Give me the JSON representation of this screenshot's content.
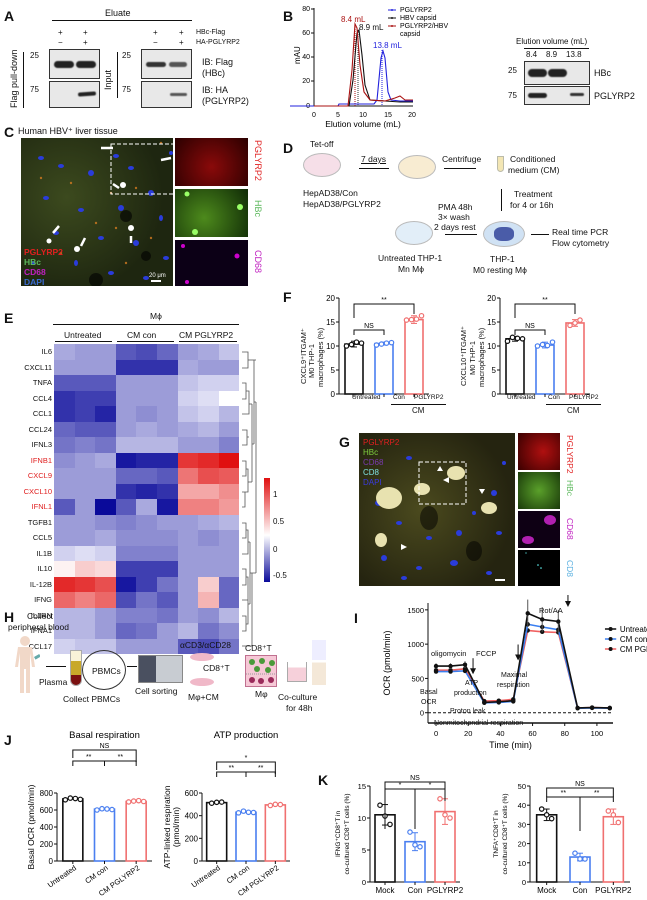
{
  "panelA": {
    "label": "A",
    "eluate": "Eluate",
    "pulldown": "Flag pull-down",
    "input": "Input",
    "row1": "HBc-Flag",
    "row2": "HA-PGLYRP2",
    "signs_eluate_r1": [
      "+",
      "+"
    ],
    "signs_eluate_r2": [
      "−",
      "+"
    ],
    "signs_input_r1": [
      "+",
      "+"
    ],
    "signs_input_r2": [
      "−",
      "+"
    ],
    "mw_top": "25",
    "mw_bottom": "75",
    "ib1a": "IB: Flag",
    "ib1b": "(HBc)",
    "ib2a": "IB: HA",
    "ib2b": "(PGLYRP2)"
  },
  "panelB": {
    "label": "B",
    "blot_title": "Elution volume (mL)",
    "blot_cols": [
      "8.4",
      "8.9",
      "13.8"
    ],
    "blot_rows": [
      "HBc",
      "PGLYRP2"
    ],
    "mw_top": "25",
    "mw_bottom": "75"
  },
  "panelC": {
    "label": "C",
    "title": "Human HBV⁺ liver tissue",
    "legend": [
      "PGLYRP2",
      "HBc",
      "CD68",
      "DAPI"
    ],
    "scale": "20 μm",
    "channels": [
      "PGLYRP2",
      "HBc",
      "CD68"
    ]
  },
  "panelD": {
    "label": "D",
    "tetoff": "Tet-off",
    "days7": "7 days",
    "centrifuge": "Centrifuge",
    "cm1": "Conditioned",
    "cm2": "medium (CM)",
    "hep1": "HepAD38/Con",
    "hep2": "HepAD38/PGLYRP2",
    "treat1": "Treatment",
    "treat2": "for 4 or 16h",
    "pma1": "PMA 48h",
    "pma2": "3× wash",
    "pma3": "2 days rest",
    "untreated1": "Untreated THP-1",
    "untreated2": "Mn Mϕ",
    "thp1": "THP-1",
    "thp2": "M0 resting Mϕ",
    "out1": "Real time PCR",
    "out2": "Flow cytometry"
  },
  "panelE": {
    "label": "E",
    "group_title": "Mϕ",
    "groups": [
      "Untreated",
      "CM con",
      "CM PGLYRP2"
    ],
    "scale_ticks": [
      "1",
      "0.5",
      "0",
      "-0.5"
    ]
  },
  "panelF": {
    "label": "F",
    "ylabel1a": "CXCL9⁺ITGAM⁺",
    "ylabel1b": "M0 THP-1",
    "ylabel1c": "macrophages (%)",
    "ylabel2a": "CXCL10⁺ITGAM⁺",
    "ylabel2b": "M0 THP-1",
    "ylabel2c": "macrophages (%)",
    "xcats": [
      "Untreated",
      "Con",
      "PGLYRP2"
    ],
    "cm": "CM",
    "sig_ns": "NS",
    "sig_star": "**"
  },
  "panelG": {
    "label": "G",
    "legend": [
      "PGLYRP2",
      "HBc",
      "CD68",
      "CD8",
      "DAPI"
    ],
    "channels": [
      "PGLYRP2",
      "HBc",
      "CD68",
      "CD8"
    ]
  },
  "panelH": {
    "label": "H",
    "collect1": "Collect",
    "collect2": "peripheral blood",
    "plasma": "Plasma",
    "pbmcs": "PBMCs",
    "collect_pbmcs": "Collect PBMCs",
    "sorting": "Cell sorting",
    "acd3": "αCD3/αCD28",
    "cd8t": "CD8⁺T",
    "mcm": "Mφ+CM",
    "cd8t2": "CD8⁺T",
    "mphi": "Mφ",
    "coculture1": "Co-culture",
    "coculture2": "for 48h"
  },
  "panelI": {
    "label": "I",
    "annotations": {
      "oligomycin": "oligomycin",
      "fccp": "FCCP",
      "rotaa": "Rot/AA",
      "basal1": "Basal",
      "basal2": "OCR",
      "atp1": "ATP",
      "atp2": "production",
      "max1": "Maximal",
      "max2": "respiration",
      "proton": "Proton leak",
      "nonmito": "Nonmitochondrial respiration"
    }
  },
  "panelJ": {
    "label": "J"
  },
  "panelK": {
    "label": "K"
  },
  "chart_data": [
    {
      "id": "B",
      "type": "line",
      "title": "",
      "xlabel": "Elution volume (mL)",
      "ylabel": "mAU",
      "xlim": [
        0,
        20
      ],
      "ylim": [
        0,
        80
      ],
      "xticks": [
        0,
        5,
        10,
        15,
        20
      ],
      "yticks": [
        0,
        20,
        40,
        60,
        80
      ],
      "series": [
        {
          "name": "PGLYRP2",
          "color": "#2222dd",
          "peak_x": 13.8,
          "peak_y": 41,
          "points": [
            [
              0,
              0
            ],
            [
              5,
              0
            ],
            [
              5.1,
              2
            ],
            [
              12,
              2
            ],
            [
              12.7,
              5
            ],
            [
              13.8,
              41
            ],
            [
              15,
              10
            ],
            [
              16,
              4
            ],
            [
              20,
              3
            ]
          ]
        },
        {
          "name": "HBV capsid",
          "color": "#111111",
          "peak_x": 8.9,
          "peak_y": 66,
          "points": [
            [
              0,
              0
            ],
            [
              7.3,
              0
            ],
            [
              8.0,
              30
            ],
            [
              8.9,
              66
            ],
            [
              9.8,
              25
            ],
            [
              11,
              8
            ],
            [
              14,
              5
            ],
            [
              17,
              4
            ],
            [
              20,
              3
            ]
          ]
        },
        {
          "name": "PGLYRP2/HBV capsid",
          "color": "#aa1111",
          "peak_x": 8.4,
          "peak_y": 69,
          "points": [
            [
              0,
              0
            ],
            [
              7.2,
              0
            ],
            [
              7.8,
              40
            ],
            [
              8.4,
              69
            ],
            [
              9.3,
              20
            ],
            [
              10.5,
              8
            ],
            [
              14,
              5
            ],
            [
              17,
              8
            ],
            [
              18,
              9
            ],
            [
              19,
              5
            ],
            [
              20,
              5
            ]
          ]
        }
      ],
      "annotations": [
        "8.4 mL",
        "8.9 mL",
        "13.8 mL"
      ],
      "legend_position": "top-right"
    },
    {
      "id": "E",
      "type": "heatmap",
      "title": "Mϕ",
      "columns": [
        "Untreated-1",
        "Untreated-2",
        "Untreated-3",
        "CM con-1",
        "CM con-2",
        "CM con-3",
        "CM PGLYRP2-1",
        "CM PGLYRP2-2",
        "CM PGLYRP2-3"
      ],
      "rows": [
        "IL6",
        "CXCL11",
        "TNFA",
        "CCL4",
        "CCL1",
        "CCL24",
        "IFNL3",
        "IFNB1",
        "CXCL9",
        "CXCL10",
        "IFNL1",
        "TGFB1",
        "CCL5",
        "IL1B",
        "IL10",
        "IL-12B",
        "IFNG",
        "IL1RN",
        "IFNA1",
        "CCL17"
      ],
      "highlighted_rows": [
        "IFNB1",
        "CXCL9",
        "CXCL10",
        "IFNL1"
      ],
      "highlight_color": "#e02020",
      "color_scale": {
        "min": -0.5,
        "max": 1.2,
        "low": "#0a0a9a",
        "mid": "#ffffff",
        "high": "#e01010",
        "ticks": [
          1,
          0.5,
          0,
          -0.5
        ]
      },
      "values": [
        [
          0.0,
          -0.05,
          -0.05,
          -0.3,
          -0.35,
          -0.25,
          -0.05,
          0.0,
          0.1
        ],
        [
          -0.05,
          -0.05,
          -0.05,
          -0.45,
          -0.45,
          -0.45,
          0.0,
          -0.05,
          -0.05
        ],
        [
          -0.3,
          -0.3,
          -0.3,
          -0.05,
          -0.05,
          -0.05,
          0.1,
          0.15,
          0.15
        ],
        [
          -0.45,
          -0.4,
          -0.4,
          -0.05,
          -0.05,
          -0.05,
          0.15,
          0.2,
          0.25
        ],
        [
          -0.45,
          -0.4,
          -0.5,
          -0.05,
          -0.1,
          -0.05,
          0.1,
          0.15,
          0.05
        ],
        [
          -0.25,
          -0.3,
          -0.3,
          -0.05,
          0.0,
          -0.05,
          0.0,
          0.05,
          -0.05
        ],
        [
          -0.2,
          -0.15,
          -0.2,
          0.05,
          0.05,
          0.05,
          -0.05,
          -0.05,
          -0.15
        ],
        [
          -0.1,
          -0.05,
          0.0,
          -0.55,
          -0.5,
          -0.5,
          1.05,
          1.1,
          1.2
        ],
        [
          -0.05,
          -0.05,
          -0.05,
          -0.25,
          -0.25,
          -0.3,
          0.8,
          0.95,
          0.9
        ],
        [
          -0.05,
          -0.05,
          -0.05,
          -0.45,
          -0.5,
          -0.45,
          0.6,
          0.6,
          0.7
        ],
        [
          -0.3,
          -0.05,
          -0.6,
          -0.3,
          0.0,
          -0.55,
          0.75,
          0.75,
          0.65
        ],
        [
          -0.05,
          -0.05,
          -0.1,
          -0.15,
          -0.1,
          -0.05,
          -0.05,
          0.0,
          0.05
        ],
        [
          -0.05,
          -0.05,
          0.0,
          -0.1,
          -0.1,
          -0.1,
          -0.05,
          -0.1,
          -0.05
        ],
        [
          0.15,
          0.2,
          0.15,
          -0.15,
          -0.15,
          -0.15,
          -0.05,
          -0.05,
          -0.05
        ],
        [
          0.3,
          0.45,
          0.4,
          -0.4,
          -0.4,
          -0.4,
          -0.05,
          -0.05,
          -0.05
        ],
        [
          1.1,
          1.05,
          0.95,
          -0.55,
          -0.4,
          -0.2,
          -0.05,
          0.45,
          -0.25
        ],
        [
          0.85,
          0.75,
          0.85,
          -0.35,
          -0.2,
          -0.3,
          -0.05,
          0.55,
          -0.25
        ],
        [
          0.05,
          0.05,
          -0.05,
          -0.15,
          -0.15,
          -0.2,
          -0.05,
          -0.1,
          0.05
        ],
        [
          0.05,
          0.05,
          -0.05,
          -0.25,
          -0.2,
          -0.05,
          0.05,
          -0.2,
          -0.1
        ],
        [
          0.15,
          0.1,
          0.1,
          -0.05,
          -0.05,
          -0.05,
          -0.3,
          -0.35,
          -0.2
        ]
      ]
    },
    {
      "id": "F-left",
      "type": "bar",
      "ylabel": "CXCL9⁺ITGAM⁺ M0 THP-1 macrophages (%)",
      "categories": [
        "Untreated",
        "Con",
        "PGLYRP2"
      ],
      "group_label": "CM (Con, PGLYRP2)",
      "values": [
        10.4,
        10.5,
        15.5
      ],
      "errors": [
        0.6,
        0.3,
        0.8
      ],
      "points": [
        [
          10.0,
          10.3,
          10.8,
          10.6
        ],
        [
          10.2,
          10.4,
          10.6,
          10.7
        ],
        [
          15.4,
          15.5,
          15.6,
          16.3
        ]
      ],
      "colors": [
        "#111111",
        "#4a7ff0",
        "#f07070"
      ],
      "ylim": [
        0,
        20
      ],
      "yticks": [
        0,
        5,
        10,
        15,
        20
      ],
      "significance": [
        {
          "pair": [
            "Untreated",
            "Con"
          ],
          "label": "NS"
        },
        {
          "pair": [
            "Untreated",
            "PGLYRP2"
          ],
          "label": "**"
        }
      ]
    },
    {
      "id": "F-right",
      "type": "bar",
      "ylabel": "CXCL10⁺ITGAM⁺ M0 THP-1 macrophages (%)",
      "categories": [
        "Untreated",
        "Con",
        "PGLYRP2"
      ],
      "group_label": "CM (Con, PGLYRP2)",
      "values": [
        11.5,
        10.2,
        14.8
      ],
      "errors": [
        0.5,
        0.6,
        0.7
      ],
      "points": [
        [
          11.0,
          11.8,
          11.6,
          11.5
        ],
        [
          10.0,
          10.3,
          10.1,
          10.8
        ],
        [
          14.3,
          14.8,
          15.4
        ]
      ],
      "colors": [
        "#111111",
        "#4a7ff0",
        "#f07070"
      ],
      "ylim": [
        0,
        20
      ],
      "yticks": [
        0,
        5,
        10,
        15,
        20
      ],
      "significance": [
        {
          "pair": [
            "Untreated",
            "Con"
          ],
          "label": "NS"
        },
        {
          "pair": [
            "Untreated",
            "PGLYRP2"
          ],
          "label": "**"
        }
      ]
    },
    {
      "id": "I",
      "type": "line",
      "xlabel": "Time (min)",
      "ylabel": "OCR (pmol/min)",
      "xlim": [
        -5,
        110
      ],
      "ylim": [
        -150,
        1600
      ],
      "xticks": [
        0,
        20,
        40,
        60,
        80,
        100
      ],
      "yticks": [
        0,
        500,
        1000,
        1500
      ],
      "x": [
        0,
        9,
        18,
        30,
        39,
        48,
        57,
        66,
        76,
        88,
        97,
        108
      ],
      "series": [
        {
          "name": "Untreated",
          "color": "#111111",
          "values": [
            680,
            680,
            700,
            150,
            160,
            175,
            1450,
            1360,
            1330,
            70,
            75,
            70
          ],
          "errors": [
            40,
            40,
            50,
            20,
            20,
            20,
            200,
            180,
            170,
            15,
            15,
            15
          ]
        },
        {
          "name": "CM con",
          "color": "#3a7ff0",
          "values": [
            600,
            600,
            610,
            145,
            150,
            165,
            1290,
            1250,
            1210,
            65,
            70,
            65
          ]
        },
        {
          "name": "CM PGLYRP2",
          "color": "#f06060",
          "values": [
            620,
            620,
            640,
            170,
            175,
            195,
            1200,
            1180,
            1170,
            70,
            75,
            70
          ]
        }
      ],
      "annotations": [
        "oligomycin @ ~23",
        "FCCP @ ~51",
        "Rot/AA @ ~82",
        "Basal OCR",
        "ATP production",
        "Maximal respiration",
        "Proton leak",
        "Nonmitochondrial respiration"
      ],
      "legend_position": "top-right"
    },
    {
      "id": "J-left",
      "type": "bar",
      "title": "Basal respiration",
      "ylabel": "Basal OCR (pmol/min)",
      "categories": [
        "Untreated",
        "CM con",
        "CM PGLYRP2"
      ],
      "values": [
        730,
        610,
        700
      ],
      "points": [
        [
          720,
          740,
          735,
          725
        ],
        [
          600,
          615,
          612,
          605
        ],
        [
          695,
          705,
          710,
          700
        ]
      ],
      "colors": [
        "#111111",
        "#4a7ff0",
        "#f07070"
      ],
      "ylim": [
        0,
        800
      ],
      "yticks": [
        0,
        200,
        400,
        600,
        800
      ],
      "significance": [
        {
          "pair": [
            "Untreated",
            "CM con"
          ],
          "label": "**"
        },
        {
          "pair": [
            "CM con",
            "CM PGLYRP2"
          ],
          "label": "**"
        },
        {
          "pair": [
            "Untreated",
            "CM PGLYRP2"
          ],
          "label": "NS"
        }
      ]
    },
    {
      "id": "J-right",
      "type": "bar",
      "title": "ATP production",
      "ylabel": "ATP-linked respiration (pmol/min)",
      "categories": [
        "Untreated",
        "CM con",
        "CM PGLYRP2"
      ],
      "values": [
        515,
        430,
        495
      ],
      "points": [
        [
          510,
          518,
          520
        ],
        [
          425,
          440,
          430,
          428
        ],
        [
          490,
          500,
          498
        ]
      ],
      "colors": [
        "#111111",
        "#4a7ff0",
        "#f07070"
      ],
      "ylim": [
        0,
        600
      ],
      "yticks": [
        0,
        200,
        400,
        600
      ],
      "significance": [
        {
          "pair": [
            "Untreated",
            "CM con"
          ],
          "label": "**"
        },
        {
          "pair": [
            "CM con",
            "CM PGLYRP2"
          ],
          "label": "**"
        },
        {
          "pair": [
            "Untreated",
            "CM PGLYRP2"
          ],
          "label": "*"
        }
      ]
    },
    {
      "id": "K-left",
      "type": "bar",
      "ylabel": "IFNG⁺CD8⁺T in co-cultured CD8⁺T cells (%)",
      "categories": [
        "Mock",
        "Con",
        "PGLYRP2"
      ],
      "values": [
        10.5,
        6.3,
        11.0
      ],
      "errors": [
        1.6,
        1.4,
        2.0
      ],
      "points": [
        [
          12.0,
          10.3,
          9.0
        ],
        [
          7.8,
          5.8,
          5.5
        ],
        [
          13.0,
          10.5,
          10.0
        ]
      ],
      "colors": [
        "#111111",
        "#4a7ff0",
        "#f07070"
      ],
      "ylim": [
        0,
        15
      ],
      "yticks": [
        0,
        5,
        10,
        15
      ],
      "significance": [
        {
          "pair": [
            "Mock",
            "Con"
          ],
          "label": "*"
        },
        {
          "pair": [
            "Con",
            "PGLYRP2"
          ],
          "label": "*"
        },
        {
          "pair": [
            "Mock",
            "PGLYRP2"
          ],
          "label": "NS"
        }
      ]
    },
    {
      "id": "K-right",
      "type": "bar",
      "ylabel": "TNFA⁺CD8⁺T in co-cultured CD8⁺T cells (%)",
      "categories": [
        "Mock",
        "Con",
        "PGLYRP2"
      ],
      "values": [
        35,
        13,
        34
      ],
      "errors": [
        3,
        2,
        4
      ],
      "points": [
        [
          38,
          35,
          33
        ],
        [
          15,
          12,
          12
        ],
        [
          37,
          35,
          31
        ]
      ],
      "colors": [
        "#111111",
        "#4a7ff0",
        "#f07070"
      ],
      "ylim": [
        0,
        50
      ],
      "yticks": [
        0,
        10,
        20,
        30,
        40,
        50
      ],
      "significance": [
        {
          "pair": [
            "Mock",
            "Con"
          ],
          "label": "**"
        },
        {
          "pair": [
            "Con",
            "PGLYRP2"
          ],
          "label": "**"
        },
        {
          "pair": [
            "Mock",
            "PGLYRP2"
          ],
          "label": "NS"
        }
      ]
    }
  ]
}
